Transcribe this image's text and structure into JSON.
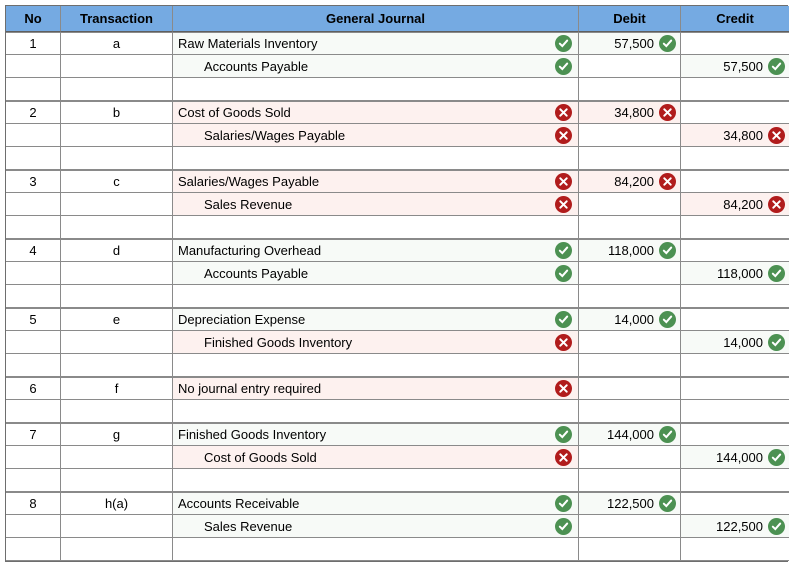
{
  "table": {
    "columns": [
      {
        "key": "no",
        "label": "No"
      },
      {
        "key": "transaction",
        "label": "Transaction"
      },
      {
        "key": "general_journal",
        "label": "General Journal"
      },
      {
        "key": "debit",
        "label": "Debit"
      },
      {
        "key": "credit",
        "label": "Credit"
      }
    ],
    "colors": {
      "header_bg": "#75AAE2",
      "correct_row_bg": "#F7FAF7",
      "incorrect_row_bg": "#FDF1EF",
      "correct_icon": "#4C9152",
      "incorrect_icon": "#B11C1C",
      "grid_line": "#8A8A8A"
    },
    "groups": [
      {
        "no": "1",
        "transaction": "a",
        "spacer": true,
        "lines": [
          {
            "account": "Raw Materials Inventory",
            "indent": false,
            "status": "correct",
            "debit": "57,500",
            "debit_status": "correct",
            "credit": "",
            "credit_status": null
          },
          {
            "account": "Accounts Payable",
            "indent": true,
            "status": "correct",
            "debit": "",
            "debit_status": null,
            "credit": "57,500",
            "credit_status": "correct"
          }
        ]
      },
      {
        "no": "2",
        "transaction": "b",
        "spacer": true,
        "lines": [
          {
            "account": "Cost of Goods Sold",
            "indent": false,
            "status": "incorrect",
            "debit": "34,800",
            "debit_status": "incorrect",
            "credit": "",
            "credit_status": null
          },
          {
            "account": "Salaries/Wages Payable",
            "indent": true,
            "status": "incorrect",
            "debit": "",
            "debit_status": null,
            "credit": "34,800",
            "credit_status": "incorrect"
          }
        ]
      },
      {
        "no": "3",
        "transaction": "c",
        "spacer": true,
        "lines": [
          {
            "account": "Salaries/Wages Payable",
            "indent": false,
            "status": "incorrect",
            "debit": "84,200",
            "debit_status": "incorrect",
            "credit": "",
            "credit_status": null
          },
          {
            "account": "Sales Revenue",
            "indent": true,
            "status": "incorrect",
            "debit": "",
            "debit_status": null,
            "credit": "84,200",
            "credit_status": "incorrect"
          }
        ]
      },
      {
        "no": "4",
        "transaction": "d",
        "spacer": true,
        "lines": [
          {
            "account": "Manufacturing Overhead",
            "indent": false,
            "status": "correct",
            "debit": "118,000",
            "debit_status": "correct",
            "credit": "",
            "credit_status": null
          },
          {
            "account": "Accounts Payable",
            "indent": true,
            "status": "correct",
            "debit": "",
            "debit_status": null,
            "credit": "118,000",
            "credit_status": "correct"
          }
        ]
      },
      {
        "no": "5",
        "transaction": "e",
        "spacer": true,
        "lines": [
          {
            "account": "Depreciation Expense",
            "indent": false,
            "status": "correct",
            "debit": "14,000",
            "debit_status": "correct",
            "credit": "",
            "credit_status": null
          },
          {
            "account": "Finished Goods Inventory",
            "indent": true,
            "status": "incorrect",
            "debit": "",
            "debit_status": null,
            "credit": "14,000",
            "credit_status": "correct"
          }
        ]
      },
      {
        "no": "6",
        "transaction": "f",
        "spacer": true,
        "lines": [
          {
            "account": "No journal entry required",
            "indent": false,
            "status": "incorrect",
            "debit": "",
            "debit_status": null,
            "credit": "",
            "credit_status": null
          }
        ]
      },
      {
        "no": "7",
        "transaction": "g",
        "spacer": true,
        "lines": [
          {
            "account": "Finished Goods Inventory",
            "indent": false,
            "status": "correct",
            "debit": "144,000",
            "debit_status": "correct",
            "credit": "",
            "credit_status": null
          },
          {
            "account": "Cost of Goods Sold",
            "indent": true,
            "status": "incorrect",
            "debit": "",
            "debit_status": null,
            "credit": "144,000",
            "credit_status": "correct"
          }
        ]
      },
      {
        "no": "8",
        "transaction": "h(a)",
        "spacer": true,
        "lines": [
          {
            "account": "Accounts Receivable",
            "indent": false,
            "status": "correct",
            "debit": "122,500",
            "debit_status": "correct",
            "credit": "",
            "credit_status": null
          },
          {
            "account": "Sales Revenue",
            "indent": true,
            "status": "correct",
            "debit": "",
            "debit_status": null,
            "credit": "122,500",
            "credit_status": "correct"
          }
        ]
      }
    ]
  }
}
